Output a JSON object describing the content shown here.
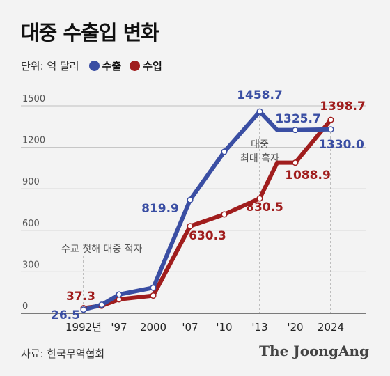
{
  "title": "대중 수출입 변화",
  "legend": {
    "unit_label": "단위: 억 달러",
    "items": [
      {
        "label": "수출",
        "color": "#3a4ea3"
      },
      {
        "label": "수입",
        "color": "#a01d1d"
      }
    ]
  },
  "source": "자료: 한국무역협회",
  "brand": "The JoongAng",
  "chart_data": {
    "type": "line",
    "x": [
      "1992",
      "1994",
      "1997",
      "2000",
      "2007",
      "2010",
      "2013",
      "2017",
      "2020",
      "2024"
    ],
    "categories": [
      "1992년",
      "'97",
      "2000",
      "'07",
      "'10",
      "'13",
      "'20",
      "2024"
    ],
    "ylim": [
      0,
      1500
    ],
    "yticks": [
      "0",
      "300",
      "600",
      "900",
      "1200",
      "1500"
    ],
    "grid": true,
    "series": [
      {
        "name": "수출",
        "color": "#3a4ea3",
        "values": [
          26.5,
          62,
          136,
          185,
          819.9,
          1168,
          1458.7,
          1325.7,
          1325.7,
          1330.0
        ],
        "labels": [
          {
            "i": 0,
            "text": "26.5"
          },
          {
            "i": 4,
            "text": "819.9"
          },
          {
            "i": 6,
            "text": "1458.7"
          },
          {
            "i": 8,
            "text": "1325.7"
          },
          {
            "i": 9,
            "text": "1330.0"
          }
        ]
      },
      {
        "name": "수입",
        "color": "#a01d1d",
        "values": [
          37.3,
          55,
          101,
          128,
          630.3,
          715,
          830.5,
          1088.9,
          1088.9,
          1398.7
        ],
        "labels": [
          {
            "i": 0,
            "text": "37.3"
          },
          {
            "i": 4,
            "text": "630.3"
          },
          {
            "i": 6,
            "text": "830.5"
          },
          {
            "i": 8,
            "text": "1088.9"
          },
          {
            "i": 9,
            "text": "1398.7"
          }
        ]
      }
    ],
    "annotations": [
      {
        "text": "수교 첫해 대중 적자",
        "at": "1992"
      },
      {
        "text": "대중\n최대 흑자",
        "at": "2013"
      }
    ]
  }
}
